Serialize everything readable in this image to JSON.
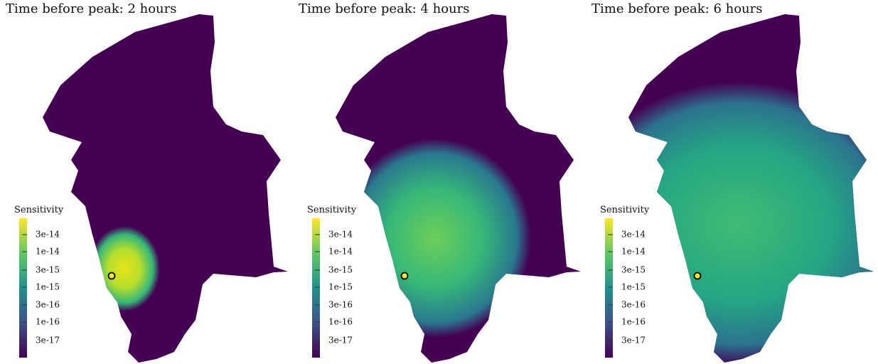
{
  "panels": [
    {
      "title": "Time before peak:  2 hours",
      "colorbar": {
        "label": "Sensitivity",
        "ticks": [
          "3e-14",
          "1e-14",
          "3e-15",
          "1e-15",
          "3e-16",
          "1e-16",
          "3e-17"
        ]
      }
    },
    {
      "title": "Time before peak:  4 hours",
      "colorbar": {
        "label": "Sensitivity",
        "ticks": [
          "3e-14",
          "1e-14",
          "3e-15",
          "1e-15",
          "3e-16",
          "1e-16",
          "3e-17"
        ]
      }
    },
    {
      "title": "Time before peak:  6 hours",
      "colorbar": {
        "label": "Sensitivity",
        "ticks": [
          "3e-14",
          "1e-14",
          "3e-15",
          "1e-15",
          "3e-16",
          "1e-16",
          "3e-17"
        ]
      }
    }
  ]
}
